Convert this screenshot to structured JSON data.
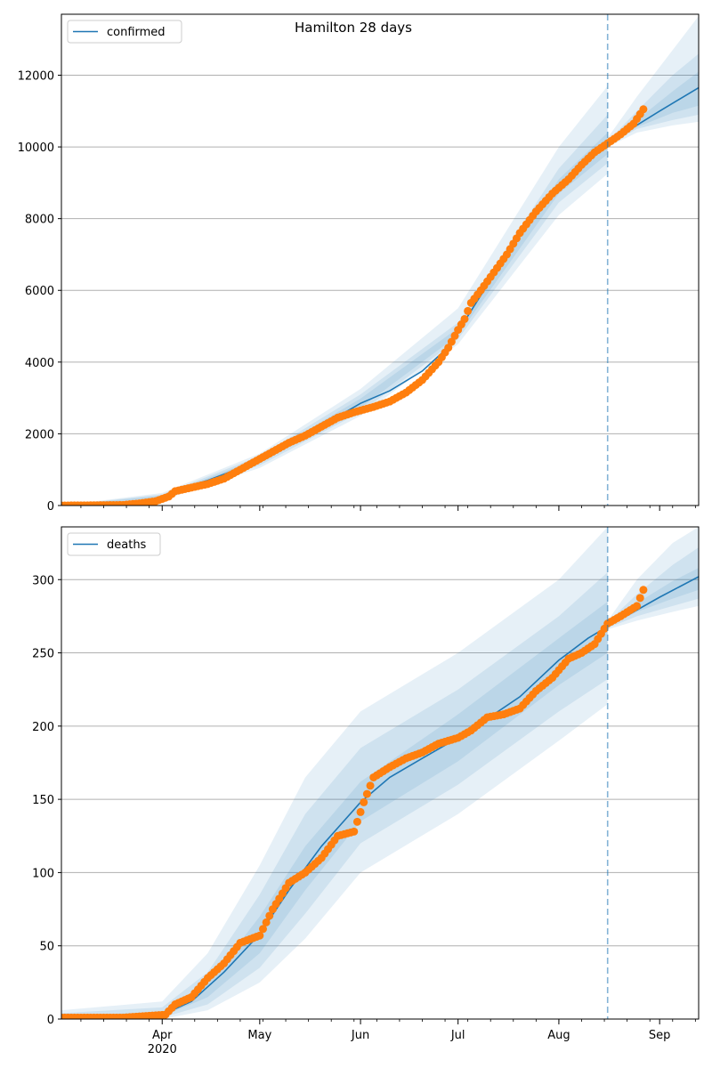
{
  "title": "Hamilton 28 days",
  "colors": {
    "model": "#1f77b4",
    "observed": "#ff7f0e",
    "band": "#1f77b4",
    "grid": "#b0b0b0",
    "divider": "#1f77b4"
  },
  "chart_data": [
    {
      "type": "line",
      "name": "confirmed-panel",
      "legend": "confirmed",
      "legend_position": "upper-left",
      "grid": "horizontal",
      "xlim": [
        "2020-03-01",
        "2020-09-13"
      ],
      "ylim": [
        0,
        13700
      ],
      "yticks": [
        0,
        2000,
        4000,
        6000,
        8000,
        10000,
        12000
      ],
      "forecast_start": "2020-08-16",
      "series": [
        {
          "name": "confirmed",
          "kind": "model-median",
          "x": [
            "2020-03-01",
            "2020-03-20",
            "2020-03-28",
            "2020-04-01",
            "2020-04-05",
            "2020-04-15",
            "2020-05-01",
            "2020-05-15",
            "2020-06-01",
            "2020-06-10",
            "2020-06-20",
            "2020-06-26",
            "2020-07-01",
            "2020-07-10",
            "2020-07-20",
            "2020-08-01",
            "2020-08-10",
            "2020-08-16",
            "2020-09-01",
            "2020-09-13"
          ],
          "y": [
            0,
            30,
            120,
            250,
            430,
            700,
            1250,
            1950,
            2850,
            3200,
            3750,
            4250,
            4850,
            6150,
            7600,
            8900,
            9650,
            10100,
            11000,
            11650
          ]
        },
        {
          "name": "confirmed-observed",
          "kind": "observed",
          "x": [
            "2020-03-01",
            "2020-03-10",
            "2020-03-20",
            "2020-03-25",
            "2020-03-30",
            "2020-04-03",
            "2020-04-05",
            "2020-04-10",
            "2020-04-15",
            "2020-04-20",
            "2020-04-25",
            "2020-05-01",
            "2020-05-05",
            "2020-05-10",
            "2020-05-15",
            "2020-05-20",
            "2020-05-25",
            "2020-05-30",
            "2020-06-05",
            "2020-06-10",
            "2020-06-15",
            "2020-06-20",
            "2020-06-25",
            "2020-06-28",
            "2020-07-01",
            "2020-07-03",
            "2020-07-05",
            "2020-07-08",
            "2020-07-12",
            "2020-07-16",
            "2020-07-20",
            "2020-07-25",
            "2020-07-30",
            "2020-08-04",
            "2020-08-08",
            "2020-08-12",
            "2020-08-16",
            "2020-08-20",
            "2020-08-24",
            "2020-08-27"
          ],
          "y": [
            0,
            5,
            15,
            60,
            120,
            250,
            400,
            500,
            600,
            750,
            1000,
            1300,
            1500,
            1750,
            1950,
            2200,
            2450,
            2600,
            2750,
            2900,
            3150,
            3500,
            4000,
            4400,
            4900,
            5200,
            5650,
            6000,
            6500,
            7000,
            7600,
            8200,
            8700,
            9100,
            9500,
            9850,
            10100,
            10350,
            10650,
            11050
          ]
        }
      ],
      "bands": [
        {
          "name": "outer-band",
          "x": [
            "2020-03-01",
            "2020-04-01",
            "2020-05-01",
            "2020-06-01",
            "2020-07-01",
            "2020-08-01",
            "2020-08-16"
          ],
          "lower": [
            0,
            150,
            1050,
            2500,
            4500,
            8100,
            9250
          ],
          "upper": [
            0,
            350,
            1450,
            3250,
            5500,
            10000,
            11700
          ]
        },
        {
          "name": "mid-band",
          "x": [
            "2020-03-01",
            "2020-04-01",
            "2020-05-01",
            "2020-06-01",
            "2020-07-01",
            "2020-08-01",
            "2020-08-16"
          ],
          "lower": [
            0,
            190,
            1120,
            2600,
            4640,
            8450,
            9550
          ],
          "upper": [
            0,
            310,
            1380,
            3100,
            5100,
            9400,
            10900
          ]
        },
        {
          "name": "inner-band",
          "x": [
            "2020-03-01",
            "2020-04-01",
            "2020-05-01",
            "2020-06-01",
            "2020-07-01",
            "2020-08-01",
            "2020-08-16"
          ],
          "lower": [
            0,
            220,
            1180,
            2720,
            4750,
            8700,
            9800
          ],
          "upper": [
            0,
            280,
            1320,
            2980,
            4950,
            9100,
            10400
          ]
        },
        {
          "name": "forecast-outer-band",
          "x": [
            "2020-08-16",
            "2020-08-25",
            "2020-09-05",
            "2020-09-13"
          ],
          "lower": [
            10000,
            10400,
            10600,
            10700
          ],
          "upper": [
            10250,
            11400,
            12700,
            13650
          ]
        },
        {
          "name": "forecast-mid-band",
          "x": [
            "2020-08-16",
            "2020-08-25",
            "2020-09-05",
            "2020-09-13"
          ],
          "lower": [
            10050,
            10500,
            10750,
            10900
          ],
          "upper": [
            10150,
            11000,
            12000,
            12600
          ]
        },
        {
          "name": "forecast-inner-band",
          "x": [
            "2020-08-16",
            "2020-08-25",
            "2020-09-05",
            "2020-09-13"
          ],
          "lower": [
            10080,
            10550,
            10950,
            11150
          ],
          "upper": [
            10120,
            10750,
            11550,
            12100
          ]
        }
      ]
    },
    {
      "type": "line",
      "name": "deaths-panel",
      "legend": "deaths",
      "legend_position": "upper-left",
      "grid": "horizontal",
      "xlim": [
        "2020-03-01",
        "2020-09-13"
      ],
      "ylim": [
        0,
        336
      ],
      "yticks": [
        0,
        50,
        100,
        150,
        200,
        250,
        300
      ],
      "xticks": [
        {
          "date": "2020-04-01",
          "label": "Apr",
          "sublabel": "2020"
        },
        {
          "date": "2020-05-01",
          "label": "May"
        },
        {
          "date": "2020-06-01",
          "label": "Jun"
        },
        {
          "date": "2020-07-01",
          "label": "Jul"
        },
        {
          "date": "2020-08-01",
          "label": "Aug"
        },
        {
          "date": "2020-09-01",
          "label": "Sep"
        }
      ],
      "forecast_start": "2020-08-16",
      "series": [
        {
          "name": "deaths",
          "kind": "model-median",
          "x": [
            "2020-03-01",
            "2020-03-25",
            "2020-04-01",
            "2020-04-10",
            "2020-04-20",
            "2020-05-01",
            "2020-05-10",
            "2020-05-20",
            "2020-06-01",
            "2020-06-10",
            "2020-06-20",
            "2020-07-01",
            "2020-07-10",
            "2020-07-20",
            "2020-08-01",
            "2020-08-10",
            "2020-08-16",
            "2020-09-01",
            "2020-09-13"
          ],
          "y": [
            0,
            0.5,
            3,
            12,
            32,
            58,
            88,
            118,
            148,
            165,
            178,
            192,
            205,
            220,
            245,
            260,
            268,
            288,
            302
          ]
        },
        {
          "name": "deaths-observed",
          "kind": "observed",
          "x": [
            "2020-03-01",
            "2020-03-20",
            "2020-04-02",
            "2020-04-05",
            "2020-04-10",
            "2020-04-15",
            "2020-04-20",
            "2020-04-25",
            "2020-05-01",
            "2020-05-05",
            "2020-05-10",
            "2020-05-15",
            "2020-05-20",
            "2020-05-25",
            "2020-05-30",
            "2020-06-02",
            "2020-06-05",
            "2020-06-10",
            "2020-06-15",
            "2020-06-20",
            "2020-06-25",
            "2020-07-01",
            "2020-07-05",
            "2020-07-10",
            "2020-07-15",
            "2020-07-20",
            "2020-07-25",
            "2020-07-30",
            "2020-08-04",
            "2020-08-08",
            "2020-08-12",
            "2020-08-16",
            "2020-08-20",
            "2020-08-25",
            "2020-08-27"
          ],
          "y": [
            1,
            1,
            3,
            10,
            15,
            28,
            38,
            52,
            57,
            75,
            93,
            100,
            110,
            125,
            128,
            148,
            165,
            172,
            178,
            182,
            188,
            192,
            197,
            206,
            208,
            212,
            224,
            233,
            246,
            250,
            256,
            270,
            275,
            282,
            293
          ]
        }
      ],
      "bands": [
        {
          "name": "outer-band",
          "x": [
            "2020-03-01",
            "2020-04-01",
            "2020-04-15",
            "2020-05-01",
            "2020-05-15",
            "2020-06-01",
            "2020-07-01",
            "2020-08-01",
            "2020-08-16"
          ],
          "lower": [
            0,
            0,
            6,
            25,
            55,
            100,
            140,
            190,
            215
          ],
          "upper": [
            6,
            12,
            45,
            105,
            165,
            210,
            250,
            300,
            336
          ]
        },
        {
          "name": "mid-band",
          "x": [
            "2020-03-01",
            "2020-04-01",
            "2020-04-15",
            "2020-05-01",
            "2020-05-15",
            "2020-06-01",
            "2020-07-01",
            "2020-08-01",
            "2020-08-16"
          ],
          "lower": [
            0,
            1,
            10,
            35,
            72,
            120,
            160,
            210,
            232
          ],
          "upper": [
            4,
            8,
            32,
            85,
            140,
            185,
            225,
            275,
            305
          ]
        },
        {
          "name": "inner-band",
          "x": [
            "2020-03-01",
            "2020-04-01",
            "2020-04-15",
            "2020-05-01",
            "2020-05-15",
            "2020-06-01",
            "2020-07-01",
            "2020-08-01",
            "2020-08-16"
          ],
          "lower": [
            0,
            2,
            15,
            45,
            88,
            135,
            176,
            228,
            250
          ],
          "upper": [
            2,
            5,
            24,
            70,
            118,
            162,
            208,
            260,
            285
          ]
        },
        {
          "name": "forecast-outer-band",
          "x": [
            "2020-08-16",
            "2020-08-25",
            "2020-09-05",
            "2020-09-13"
          ],
          "lower": [
            266,
            272,
            278,
            282
          ],
          "upper": [
            272,
            300,
            325,
            336
          ]
        },
        {
          "name": "forecast-mid-band",
          "x": [
            "2020-08-16",
            "2020-08-25",
            "2020-09-05",
            "2020-09-13"
          ],
          "lower": [
            267,
            275,
            282,
            287
          ],
          "upper": [
            271,
            290,
            310,
            322
          ]
        },
        {
          "name": "forecast-inner-band",
          "x": [
            "2020-08-16",
            "2020-08-25",
            "2020-09-05",
            "2020-09-13"
          ],
          "lower": [
            268,
            278,
            287,
            293
          ],
          "upper": [
            270,
            284,
            299,
            308
          ]
        }
      ]
    }
  ]
}
